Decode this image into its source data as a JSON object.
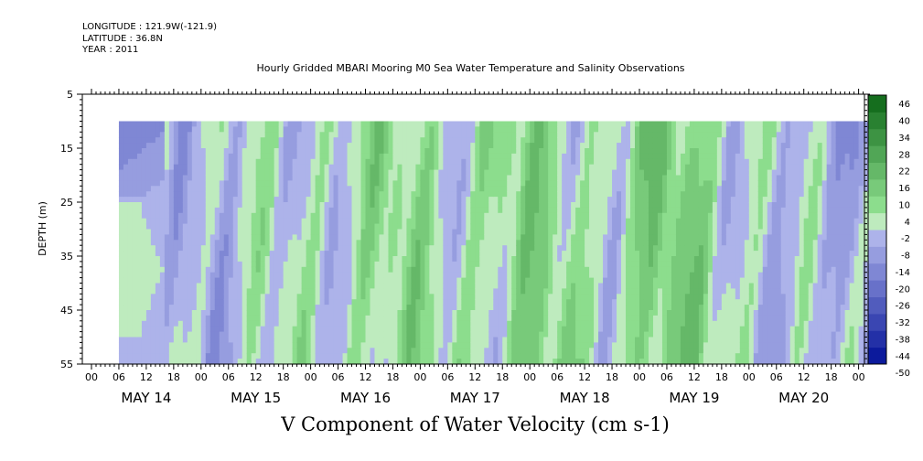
{
  "header": {
    "longitude": "LONGITUDE : 121.9W(-121.9)",
    "latitude": "LATITUDE : 36.8N",
    "year": "YEAR : 2011"
  },
  "chart_data": {
    "type": "heatmap",
    "title": "Hourly Gridded MBARI Mooring M0 Sea Water Temperature and Salinity Observations",
    "xlabel": "V Component of Water Velocity (cm s-1)",
    "ylabel": "DEPTH (m)",
    "ylim": [
      55,
      5
    ],
    "y_ticks": [
      5,
      15,
      25,
      35,
      45,
      55
    ],
    "x_hour_labels": [
      "00",
      "06",
      "12",
      "18"
    ],
    "x_day_labels": [
      "MAY 14",
      "MAY 15",
      "MAY 16",
      "MAY 17",
      "MAY 18",
      "MAY 19",
      "MAY 20"
    ],
    "data_depth_range": [
      10,
      55
    ],
    "data_start_hour": 6,
    "colorbar": {
      "levels": [
        -50,
        -44,
        -38,
        -32,
        -26,
        -20,
        -14,
        -8,
        -2,
        4,
        10,
        16,
        22,
        28,
        34,
        40,
        46
      ],
      "label_values": [
        "46",
        "40",
        "34",
        "28",
        "22",
        "16",
        "10",
        "4",
        "-2",
        "-8",
        "-14",
        "-20",
        "-26",
        "-32",
        "-38",
        "-44",
        "-50"
      ]
    },
    "grid": false,
    "legend": "right"
  }
}
